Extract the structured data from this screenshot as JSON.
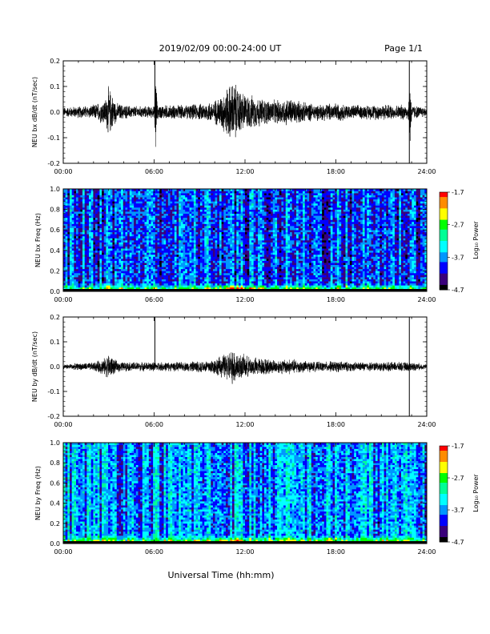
{
  "header": {
    "title": "2019/02/09  00:00-24:00 UT",
    "page": "Page 1/1"
  },
  "footer": {
    "xlabel": "Universal Time (hh:mm)"
  },
  "colors": {
    "trace": "#000000",
    "axis": "#000000",
    "colormap": [
      "#000000",
      "#3a007a",
      "#0000ff",
      "#0096ff",
      "#00ffff",
      "#00ff96",
      "#00ff00",
      "#ffff00",
      "#ff8c00",
      "#ff0000"
    ]
  },
  "chart_data": [
    {
      "type": "line",
      "panel": "bx-timeseries",
      "title": "",
      "xlabel": "",
      "ylabel": "NEU bx dB/dt (nT/sec)",
      "xlim": [
        0,
        24
      ],
      "ylim": [
        -0.2,
        0.2
      ],
      "xticks": [
        "00:00",
        "06:00",
        "12:00",
        "18:00",
        "24:00"
      ],
      "yticks": [
        "-0.2",
        "-0.1",
        "0.0",
        "0.1",
        "0.2"
      ],
      "series": [
        {
          "x": [
            0,
            1,
            2,
            2.8,
            3.0,
            3.2,
            3.5,
            4,
            5,
            6,
            6.1,
            6.2,
            7,
            8,
            9,
            10,
            10.5,
            11,
            11.3,
            11.6,
            12,
            12.5,
            13,
            14,
            15,
            16,
            17,
            18,
            19,
            20,
            21,
            22,
            22.8,
            22.9,
            23,
            24
          ],
          "amplitude": [
            0.02,
            0.025,
            0.03,
            0.06,
            0.11,
            0.08,
            0.04,
            0.03,
            0.025,
            0.025,
            0.22,
            0.03,
            0.03,
            0.03,
            0.035,
            0.05,
            0.08,
            0.12,
            0.13,
            0.1,
            0.08,
            0.07,
            0.06,
            0.05,
            0.06,
            0.04,
            0.035,
            0.04,
            0.03,
            0.03,
            0.035,
            0.03,
            0.035,
            0.2,
            0.03,
            0.02
          ]
        }
      ],
      "spikes": [
        {
          "x": 6.05,
          "y_top": 0.2,
          "y_bottom": 0.0
        },
        {
          "x": 22.85,
          "y_top": 0.22,
          "y_bottom": -0.2
        }
      ]
    },
    {
      "type": "heatmap",
      "panel": "bx-spectrogram",
      "title": "",
      "xlabel": "",
      "ylabel": "NEU bx Freq (Hz)",
      "xlim": [
        0,
        24
      ],
      "ylim": [
        0.0,
        1.0
      ],
      "xticks": [
        "00:00",
        "06:00",
        "12:00",
        "18:00",
        "24:00"
      ],
      "yticks": [
        "0.0",
        "0.2",
        "0.4",
        "0.6",
        "0.8",
        "1.0"
      ],
      "colorbar": {
        "label": "Log₁₀ Power",
        "range": [
          -4.7,
          -1.7
        ],
        "ticks": [
          "-1.7",
          "-2.7",
          "-3.7",
          "-4.7"
        ]
      },
      "description_bands": {
        "low_freq_power_max": -1.7,
        "background_power": -3.9
      }
    },
    {
      "type": "line",
      "panel": "by-timeseries",
      "title": "",
      "xlabel": "",
      "ylabel": "NEU by dB/dt (nT/sec)",
      "xlim": [
        0,
        24
      ],
      "ylim": [
        -0.2,
        0.2
      ],
      "xticks": [
        "00:00",
        "06:00",
        "12:00",
        "18:00",
        "24:00"
      ],
      "yticks": [
        "-0.2",
        "-0.1",
        "0.0",
        "0.1",
        "0.2"
      ],
      "series": [
        {
          "x": [
            0,
            1,
            2,
            2.8,
            3.0,
            3.2,
            3.5,
            4,
            5,
            6,
            7,
            8,
            9,
            10,
            10.5,
            11,
            11.3,
            11.6,
            12,
            12.5,
            13,
            14,
            15,
            16,
            17,
            18,
            19,
            20,
            21,
            22,
            23,
            24
          ],
          "amplitude": [
            0.01,
            0.015,
            0.018,
            0.04,
            0.06,
            0.045,
            0.025,
            0.02,
            0.02,
            0.02,
            0.02,
            0.02,
            0.025,
            0.035,
            0.05,
            0.07,
            0.08,
            0.06,
            0.05,
            0.04,
            0.04,
            0.03,
            0.035,
            0.025,
            0.02,
            0.025,
            0.02,
            0.02,
            0.02,
            0.02,
            0.02,
            0.01
          ]
        }
      ],
      "spikes": [
        {
          "x": 6.05,
          "y_top": 0.2,
          "y_bottom": 0.0
        },
        {
          "x": 22.85,
          "y_top": 0.22,
          "y_bottom": -0.2
        }
      ]
    },
    {
      "type": "heatmap",
      "panel": "by-spectrogram",
      "title": "",
      "xlabel": "",
      "ylabel": "NEU by Freq (Hz)",
      "xlim": [
        0,
        24
      ],
      "ylim": [
        0.0,
        1.0
      ],
      "xticks": [
        "00:00",
        "06:00",
        "12:00",
        "18:00",
        "24:00"
      ],
      "yticks": [
        "0.0",
        "0.2",
        "0.4",
        "0.6",
        "0.8",
        "1.0"
      ],
      "colorbar": {
        "label": "Log₁₀ Power",
        "range": [
          -4.7,
          -1.7
        ],
        "ticks": [
          "-1.7",
          "-2.7",
          "-3.7",
          "-4.7"
        ]
      },
      "description_bands": {
        "low_freq_power_max": -2.0,
        "background_power": -3.7
      }
    }
  ]
}
